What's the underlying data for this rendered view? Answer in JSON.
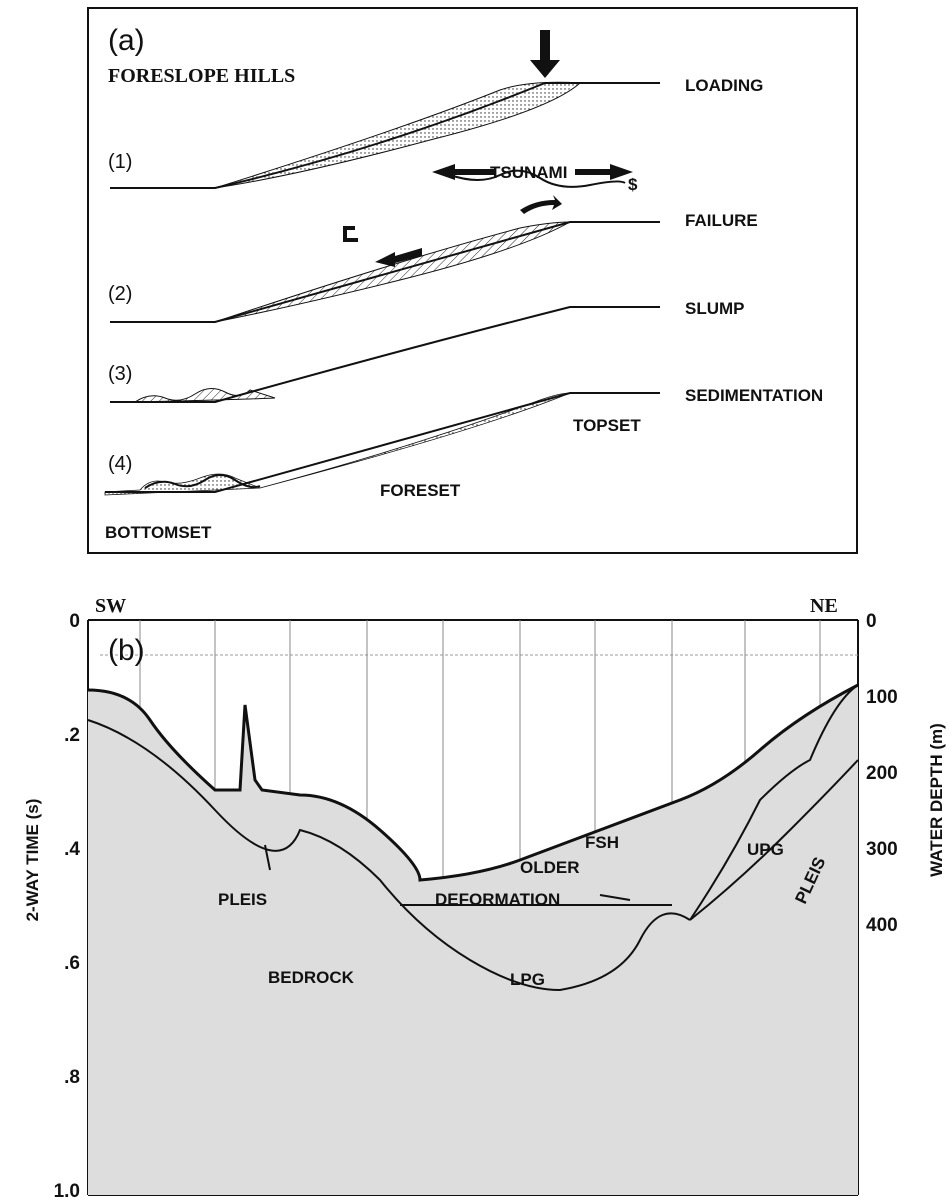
{
  "panel_a": {
    "label": "(a)",
    "title": "FORESLOPE HILLS",
    "stages": [
      "(1)",
      "(2)",
      "(3)",
      "(4)"
    ],
    "stage_names": [
      "LOADING",
      "FAILURE",
      "SLUMP",
      "SEDIMENTATION"
    ],
    "tsunami": "TSUNAMI",
    "topset": "TOPSET",
    "foreset": "FORESET",
    "bottomset": "BOTTOMSET"
  },
  "panel_b": {
    "label": "(b)",
    "left_end": "SW",
    "right_end": "NE",
    "y_axis_label": "2-WAY TIME (s)",
    "y_ticks": [
      "0",
      ".2",
      ".4",
      ".6",
      ".8",
      "1.0"
    ],
    "y2_axis_label": "WATER DEPTH (m)",
    "y2_ticks": [
      "0",
      "100",
      "200",
      "300",
      "400"
    ],
    "annotations": {
      "fsh": "FSH",
      "pleis_left": "PLEIS",
      "upg": "UPG",
      "pleis_right": "PLEIS",
      "older": "OLDER",
      "deformation": "DEFORMATION",
      "bedrock": "BEDROCK",
      "lpg": "LPG"
    }
  }
}
